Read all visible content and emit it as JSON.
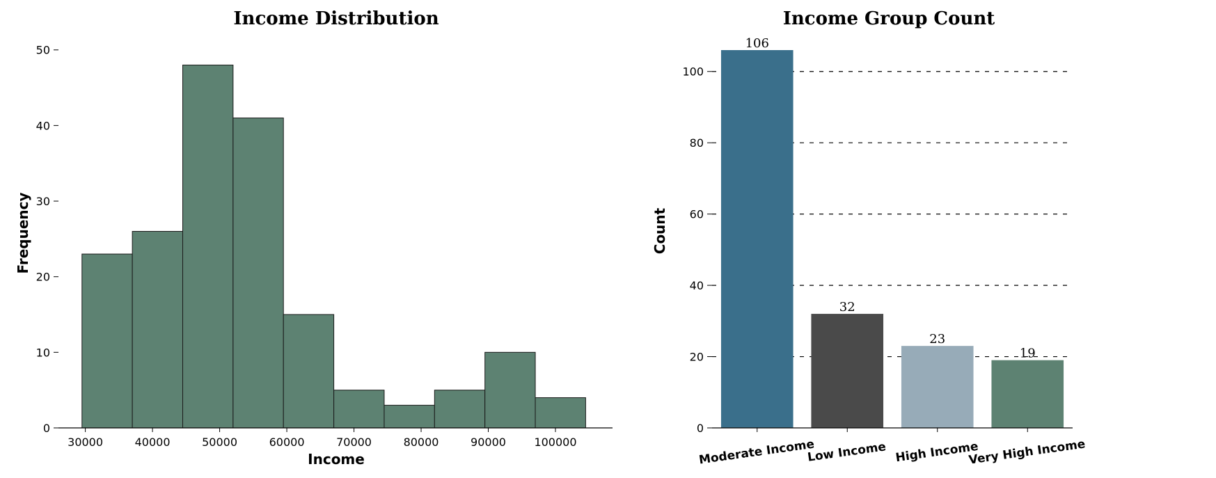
{
  "chart_data": [
    {
      "type": "bar",
      "subtype": "histogram",
      "title": "Income Distribution",
      "xlabel": "Income",
      "ylabel": "Frequency",
      "xlim": [
        26000,
        108500
      ],
      "ylim": [
        0,
        52
      ],
      "xticks": [
        30000,
        40000,
        50000,
        60000,
        70000,
        80000,
        90000,
        100000
      ],
      "yticks": [
        0,
        10,
        20,
        30,
        40,
        50
      ],
      "bin_edges": [
        29500,
        37000,
        44500,
        52000,
        59500,
        67000,
        74500,
        82000,
        89500,
        97000,
        104500
      ],
      "values": [
        23,
        26,
        48,
        41,
        15,
        5,
        3,
        5,
        10,
        4
      ],
      "bar_color": "#5d8272",
      "edge_color": "#1a1a1a",
      "grid": false
    },
    {
      "type": "bar",
      "title": "Income Group Count",
      "xlabel": "",
      "ylabel": "Count",
      "ylim": [
        0,
        106
      ],
      "yticks": [
        0,
        20,
        40,
        60,
        80,
        100
      ],
      "categories": [
        "Moderate Income",
        "Low Income",
        "High Income",
        "Very High Income"
      ],
      "values": [
        106,
        32,
        23,
        19
      ],
      "data_labels": [
        "106",
        "32",
        "23",
        "19"
      ],
      "colors": [
        "#3a6f8b",
        "#4a4a4a",
        "#97abb8",
        "#5d8272"
      ],
      "grid": "y-dashed"
    }
  ]
}
